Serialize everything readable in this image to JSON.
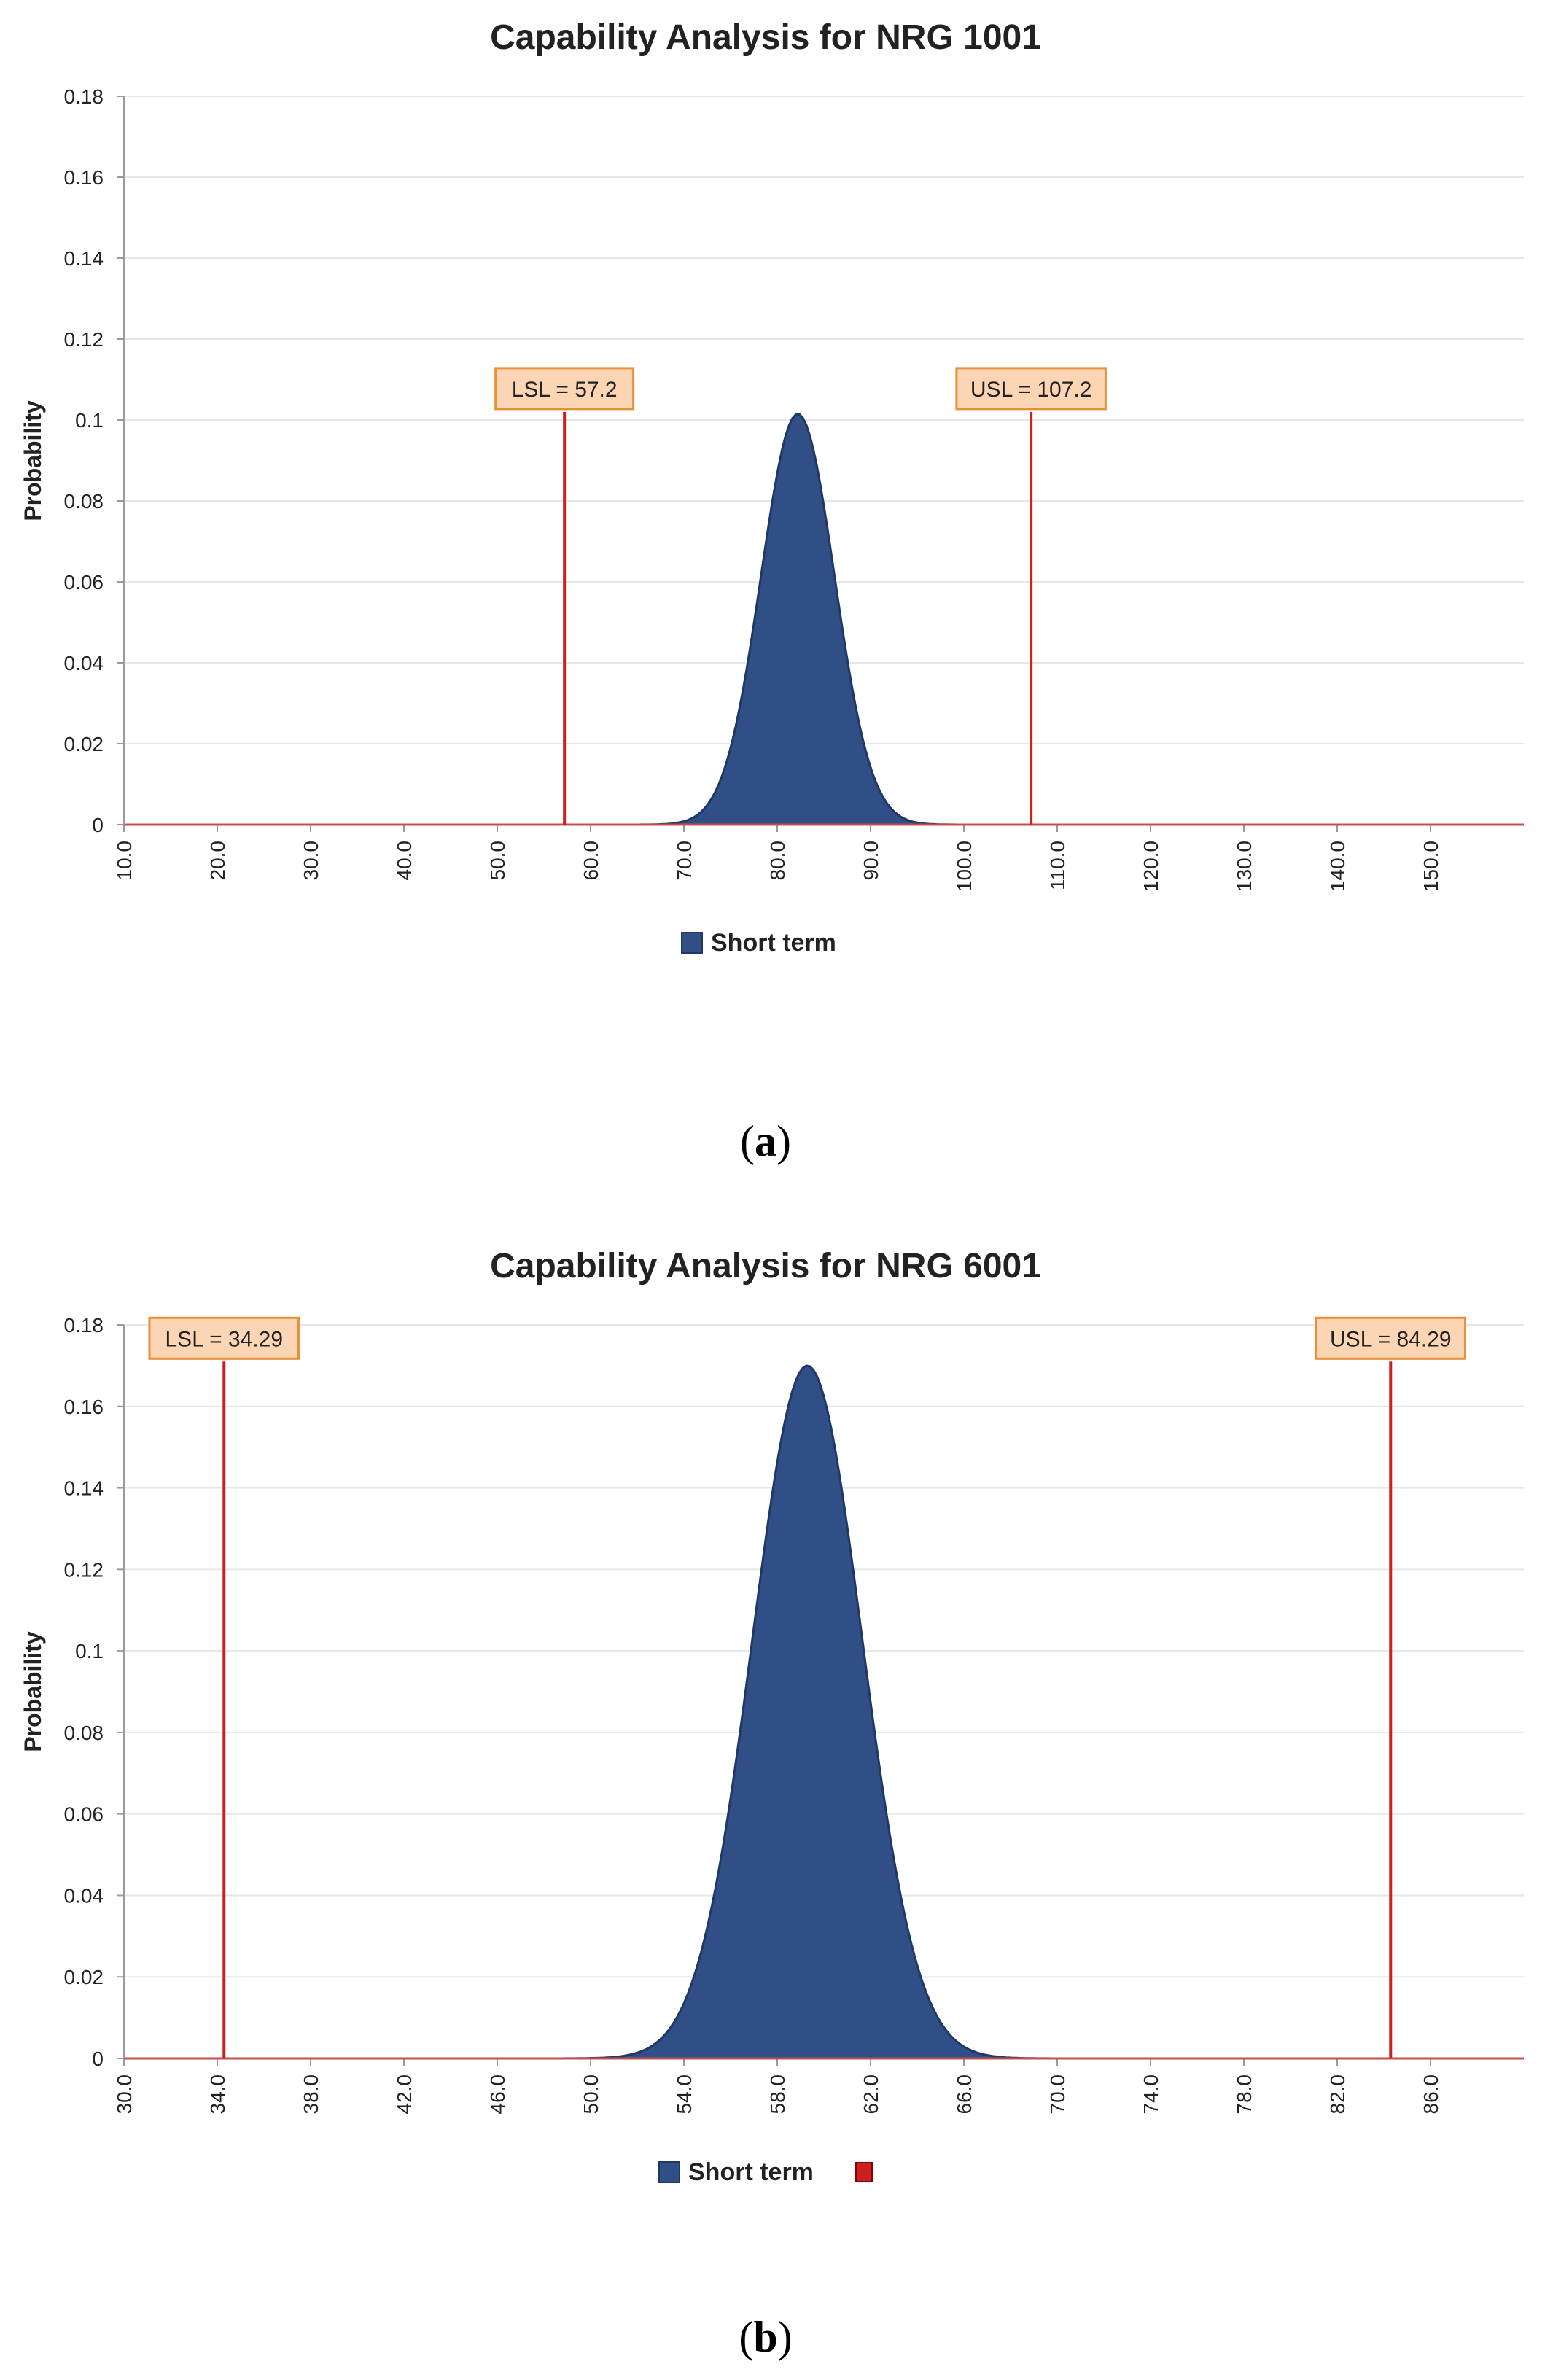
{
  "colors": {
    "curve": "#2f4f86",
    "curve_stroke": "#1f3864",
    "spec_line": "#cc1f1f",
    "label_fill": "#fcd5b4",
    "label_stroke": "#e69138",
    "grid": "#e6e6e6",
    "axis": "#9a9a9a"
  },
  "chart_data": [
    {
      "type": "area",
      "title": "Capability Analysis for NRG 1001",
      "xlabel": "",
      "ylabel": "Probability",
      "xlim": [
        10.0,
        160.0
      ],
      "x_ticks": [
        "10.0",
        "20.0",
        "30.0",
        "40.0",
        "50.0",
        "60.0",
        "70.0",
        "80.0",
        "90.0",
        "100.0",
        "110.0",
        "120.0",
        "130.0",
        "140.0",
        "150.0"
      ],
      "ylim": [
        0,
        0.18
      ],
      "y_ticks": [
        "0",
        "0.02",
        "0.04",
        "0.06",
        "0.08",
        "0.1",
        "0.12",
        "0.14",
        "0.16",
        "0.18"
      ],
      "series": [
        {
          "name": "Short term",
          "distribution": "normal",
          "mean": 82.2,
          "stdev": 3.93,
          "peak": 0.1015
        }
      ],
      "spec_limits": [
        {
          "label": "LSL = 57.2",
          "value": 57.2,
          "height": 0.102
        },
        {
          "label": "USL = 107.2",
          "value": 107.2,
          "height": 0.102
        }
      ],
      "legend": {
        "entries": [
          "Short term"
        ],
        "position": "bottom"
      },
      "caption": {
        "open": "(",
        "letter": "a",
        "close": ")"
      }
    },
    {
      "type": "area",
      "title": "Capability Analysis for NRG 6001",
      "xlabel": "",
      "ylabel": "Probability",
      "xlim": [
        30.0,
        90.0
      ],
      "x_ticks": [
        "30.0",
        "34.0",
        "38.0",
        "42.0",
        "46.0",
        "50.0",
        "54.0",
        "58.0",
        "62.0",
        "66.0",
        "70.0",
        "74.0",
        "78.0",
        "82.0",
        "86.0"
      ],
      "ylim": [
        0,
        0.18
      ],
      "y_ticks": [
        "0",
        "0.02",
        "0.04",
        "0.06",
        "0.08",
        "0.1",
        "0.12",
        "0.14",
        "0.16",
        "0.18"
      ],
      "series": [
        {
          "name": "Short term",
          "distribution": "normal",
          "mean": 59.29,
          "stdev": 2.35,
          "peak": 0.17
        }
      ],
      "spec_limits": [
        {
          "label": "LSL = 34.29",
          "value": 34.29,
          "height": 0.171
        },
        {
          "label": "USL = 84.29",
          "value": 84.29,
          "height": 0.171
        }
      ],
      "legend": {
        "entries": [
          "Short term",
          ""
        ],
        "position": "bottom"
      },
      "caption": {
        "open": "(",
        "letter": "b",
        "close": ")"
      }
    }
  ]
}
